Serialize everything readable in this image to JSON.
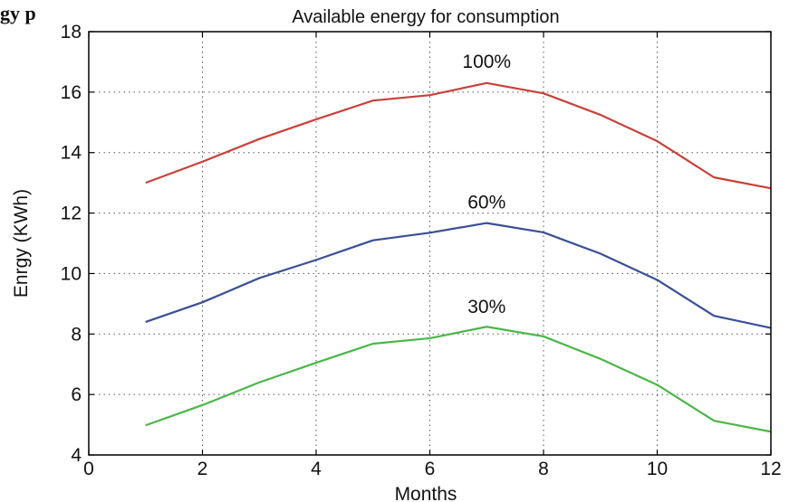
{
  "header_fragment": "gy   p",
  "chart_data": {
    "type": "line",
    "title": "Available energy for consumption",
    "xlabel": "Months",
    "ylabel": "Enrgy (KWh)",
    "xlim": [
      0,
      12
    ],
    "ylim": [
      4,
      18
    ],
    "xticks": [
      0,
      2,
      4,
      6,
      8,
      10,
      12
    ],
    "yticks": [
      4,
      6,
      8,
      10,
      12,
      14,
      16,
      18
    ],
    "grid": true,
    "x": [
      1,
      2,
      3,
      4,
      5,
      6,
      7,
      8,
      9,
      10,
      11,
      12
    ],
    "series": [
      {
        "color": "#c8403a",
        "values": [
          13.0,
          13.7,
          14.45,
          15.1,
          15.72,
          15.9,
          16.3,
          15.96,
          15.25,
          14.38,
          13.18,
          12.82
        ]
      },
      {
        "color": "#3a4f95",
        "values": [
          8.4,
          9.05,
          9.85,
          10.45,
          11.1,
          11.35,
          11.67,
          11.36,
          10.66,
          9.79,
          8.6,
          8.2
        ]
      },
      {
        "color": "#4bb64a",
        "values": [
          4.98,
          5.65,
          6.4,
          7.05,
          7.68,
          7.86,
          8.24,
          7.92,
          7.18,
          6.32,
          5.13,
          4.77
        ]
      }
    ],
    "annotations": [
      {
        "text": "100%",
        "x": 7,
        "y": 16.8
      },
      {
        "text": "60%",
        "x": 7,
        "y": 12.15
      },
      {
        "text": "30%",
        "x": 7,
        "y": 8.7
      }
    ]
  }
}
